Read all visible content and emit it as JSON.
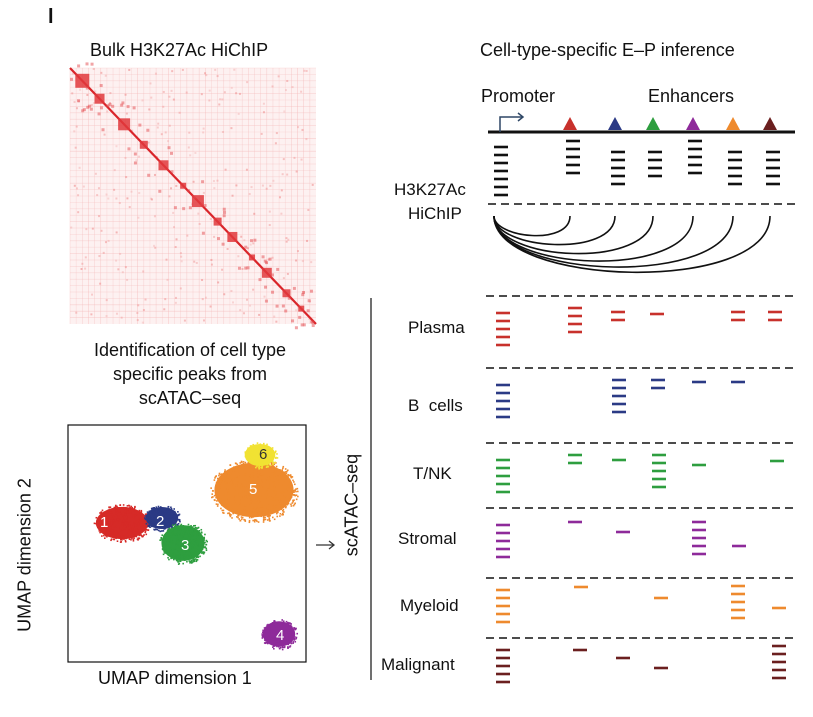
{
  "panel_letter": "l",
  "left": {
    "hichip_title": "Bulk H3K27Ac HiChIP",
    "identification_caption": [
      "Identification of cell type",
      "specific peaks from",
      "scATAC–seq"
    ],
    "umap": {
      "xlabel": "UMAP dimension 1",
      "ylabel": "UMAP dimension 2",
      "clusters": [
        {
          "label": "1",
          "color": "#d62a27"
        },
        {
          "label": "2",
          "color": "#2b3a85"
        },
        {
          "label": "3",
          "color": "#2e9e3f"
        },
        {
          "label": "4",
          "color": "#8e2a9a"
        },
        {
          "label": "5",
          "color": "#ee8a2e"
        },
        {
          "label": "6",
          "color": "#f1e233"
        }
      ]
    },
    "arrow_icon": "right-arrow-icon"
  },
  "right": {
    "title": "Cell-type-specific E–P inference",
    "promoter_label": "Promoter",
    "enhancers_label": "Enhancers",
    "hichip_label_line1": "H3K27Ac",
    "hichip_label_line2": "HiChIP",
    "scatac_label": "scATAC–seq",
    "enhancer_colors": [
      "#c8312c",
      "#2b3a85",
      "#2e9e3f",
      "#8e2a9a",
      "#ee8a2e",
      "#6b1f1f"
    ],
    "cell_types": [
      {
        "name": "Plasma",
        "color": "#c8312c"
      },
      {
        "name": "B  cells",
        "color": "#2b3a85"
      },
      {
        "name": "T/NK",
        "color": "#2e9e3f"
      },
      {
        "name": "Stromal",
        "color": "#8e2a9a"
      },
      {
        "name": "Myeloid",
        "color": "#ee8a2e"
      },
      {
        "name": "Malignant",
        "color": "#6b1f1f"
      }
    ]
  }
}
